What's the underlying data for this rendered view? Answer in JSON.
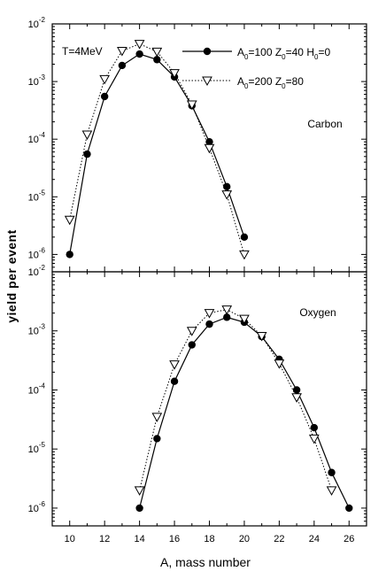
{
  "xlabel": "A, mass number",
  "ylabel": "yield per event",
  "x_ticks": [
    "10",
    "12",
    "14",
    "16",
    "18",
    "20",
    "22",
    "24",
    "26"
  ],
  "chart_data": [
    {
      "type": "scatter",
      "panel_label": "Carbon",
      "annotation": "T=4MeV",
      "xlim": [
        9,
        27
      ],
      "ylim": [
        5e-07,
        0.01
      ],
      "yscale": "log",
      "y_ticks": [
        {
          "value": 1e-06,
          "exp": "-6"
        },
        {
          "value": 1e-05,
          "exp": "-5"
        },
        {
          "value": 0.0001,
          "exp": "-4"
        },
        {
          "value": 0.001,
          "exp": "-3"
        },
        {
          "value": 0.01,
          "exp": "-2"
        }
      ],
      "legend_placement": "top-right",
      "series": [
        {
          "name": [
            "A",
            "0",
            "=100 Z",
            "0",
            "=40 H",
            "0",
            "=0"
          ],
          "marker": "filled-circle",
          "line": "solid",
          "x": [
            10,
            11,
            12,
            13,
            14,
            15,
            16,
            17,
            18,
            19,
            20
          ],
          "y": [
            1e-06,
            5.5e-05,
            0.00055,
            0.0019,
            0.003,
            0.0024,
            0.0012,
            0.00038,
            9e-05,
            1.5e-05,
            2e-06
          ]
        },
        {
          "name": [
            "A",
            "0",
            "=200 Z",
            "0",
            "=80"
          ],
          "marker": "open-triangle-down",
          "line": "dotted",
          "x": [
            10,
            11,
            12,
            13,
            14,
            15,
            16,
            17,
            18,
            19,
            20
          ],
          "y": [
            4e-06,
            0.00012,
            0.0011,
            0.0034,
            0.0045,
            0.0033,
            0.0014,
            0.0004,
            7e-05,
            1.1e-05,
            1e-06
          ]
        }
      ]
    },
    {
      "type": "scatter",
      "panel_label": "Oxygen",
      "xlim": [
        9,
        27
      ],
      "ylim": [
        5e-07,
        0.01
      ],
      "yscale": "log",
      "y_ticks": [
        {
          "value": 1e-06,
          "exp": "-6"
        },
        {
          "value": 1e-05,
          "exp": "-5"
        },
        {
          "value": 0.0001,
          "exp": "-4"
        },
        {
          "value": 0.001,
          "exp": "-3"
        },
        {
          "value": 0.01,
          "exp": "-2"
        }
      ],
      "series": [
        {
          "marker": "filled-circle",
          "line": "solid",
          "x": [
            14,
            15,
            16,
            17,
            18,
            19,
            20,
            21,
            22,
            23,
            24,
            25,
            26
          ],
          "y": [
            1e-06,
            1.5e-05,
            0.00014,
            0.00058,
            0.0013,
            0.0017,
            0.0014,
            0.0008,
            0.00033,
            0.0001,
            2.3e-05,
            4e-06,
            1e-06
          ]
        },
        {
          "marker": "open-triangle-down",
          "line": "dotted",
          "x": [
            14,
            15,
            16,
            17,
            18,
            19,
            20,
            21,
            22,
            23,
            24,
            25
          ],
          "y": [
            2e-06,
            3.5e-05,
            0.00027,
            0.001,
            0.002,
            0.0023,
            0.0016,
            0.00082,
            0.00028,
            7.5e-05,
            1.5e-05,
            2e-06
          ]
        }
      ]
    }
  ]
}
